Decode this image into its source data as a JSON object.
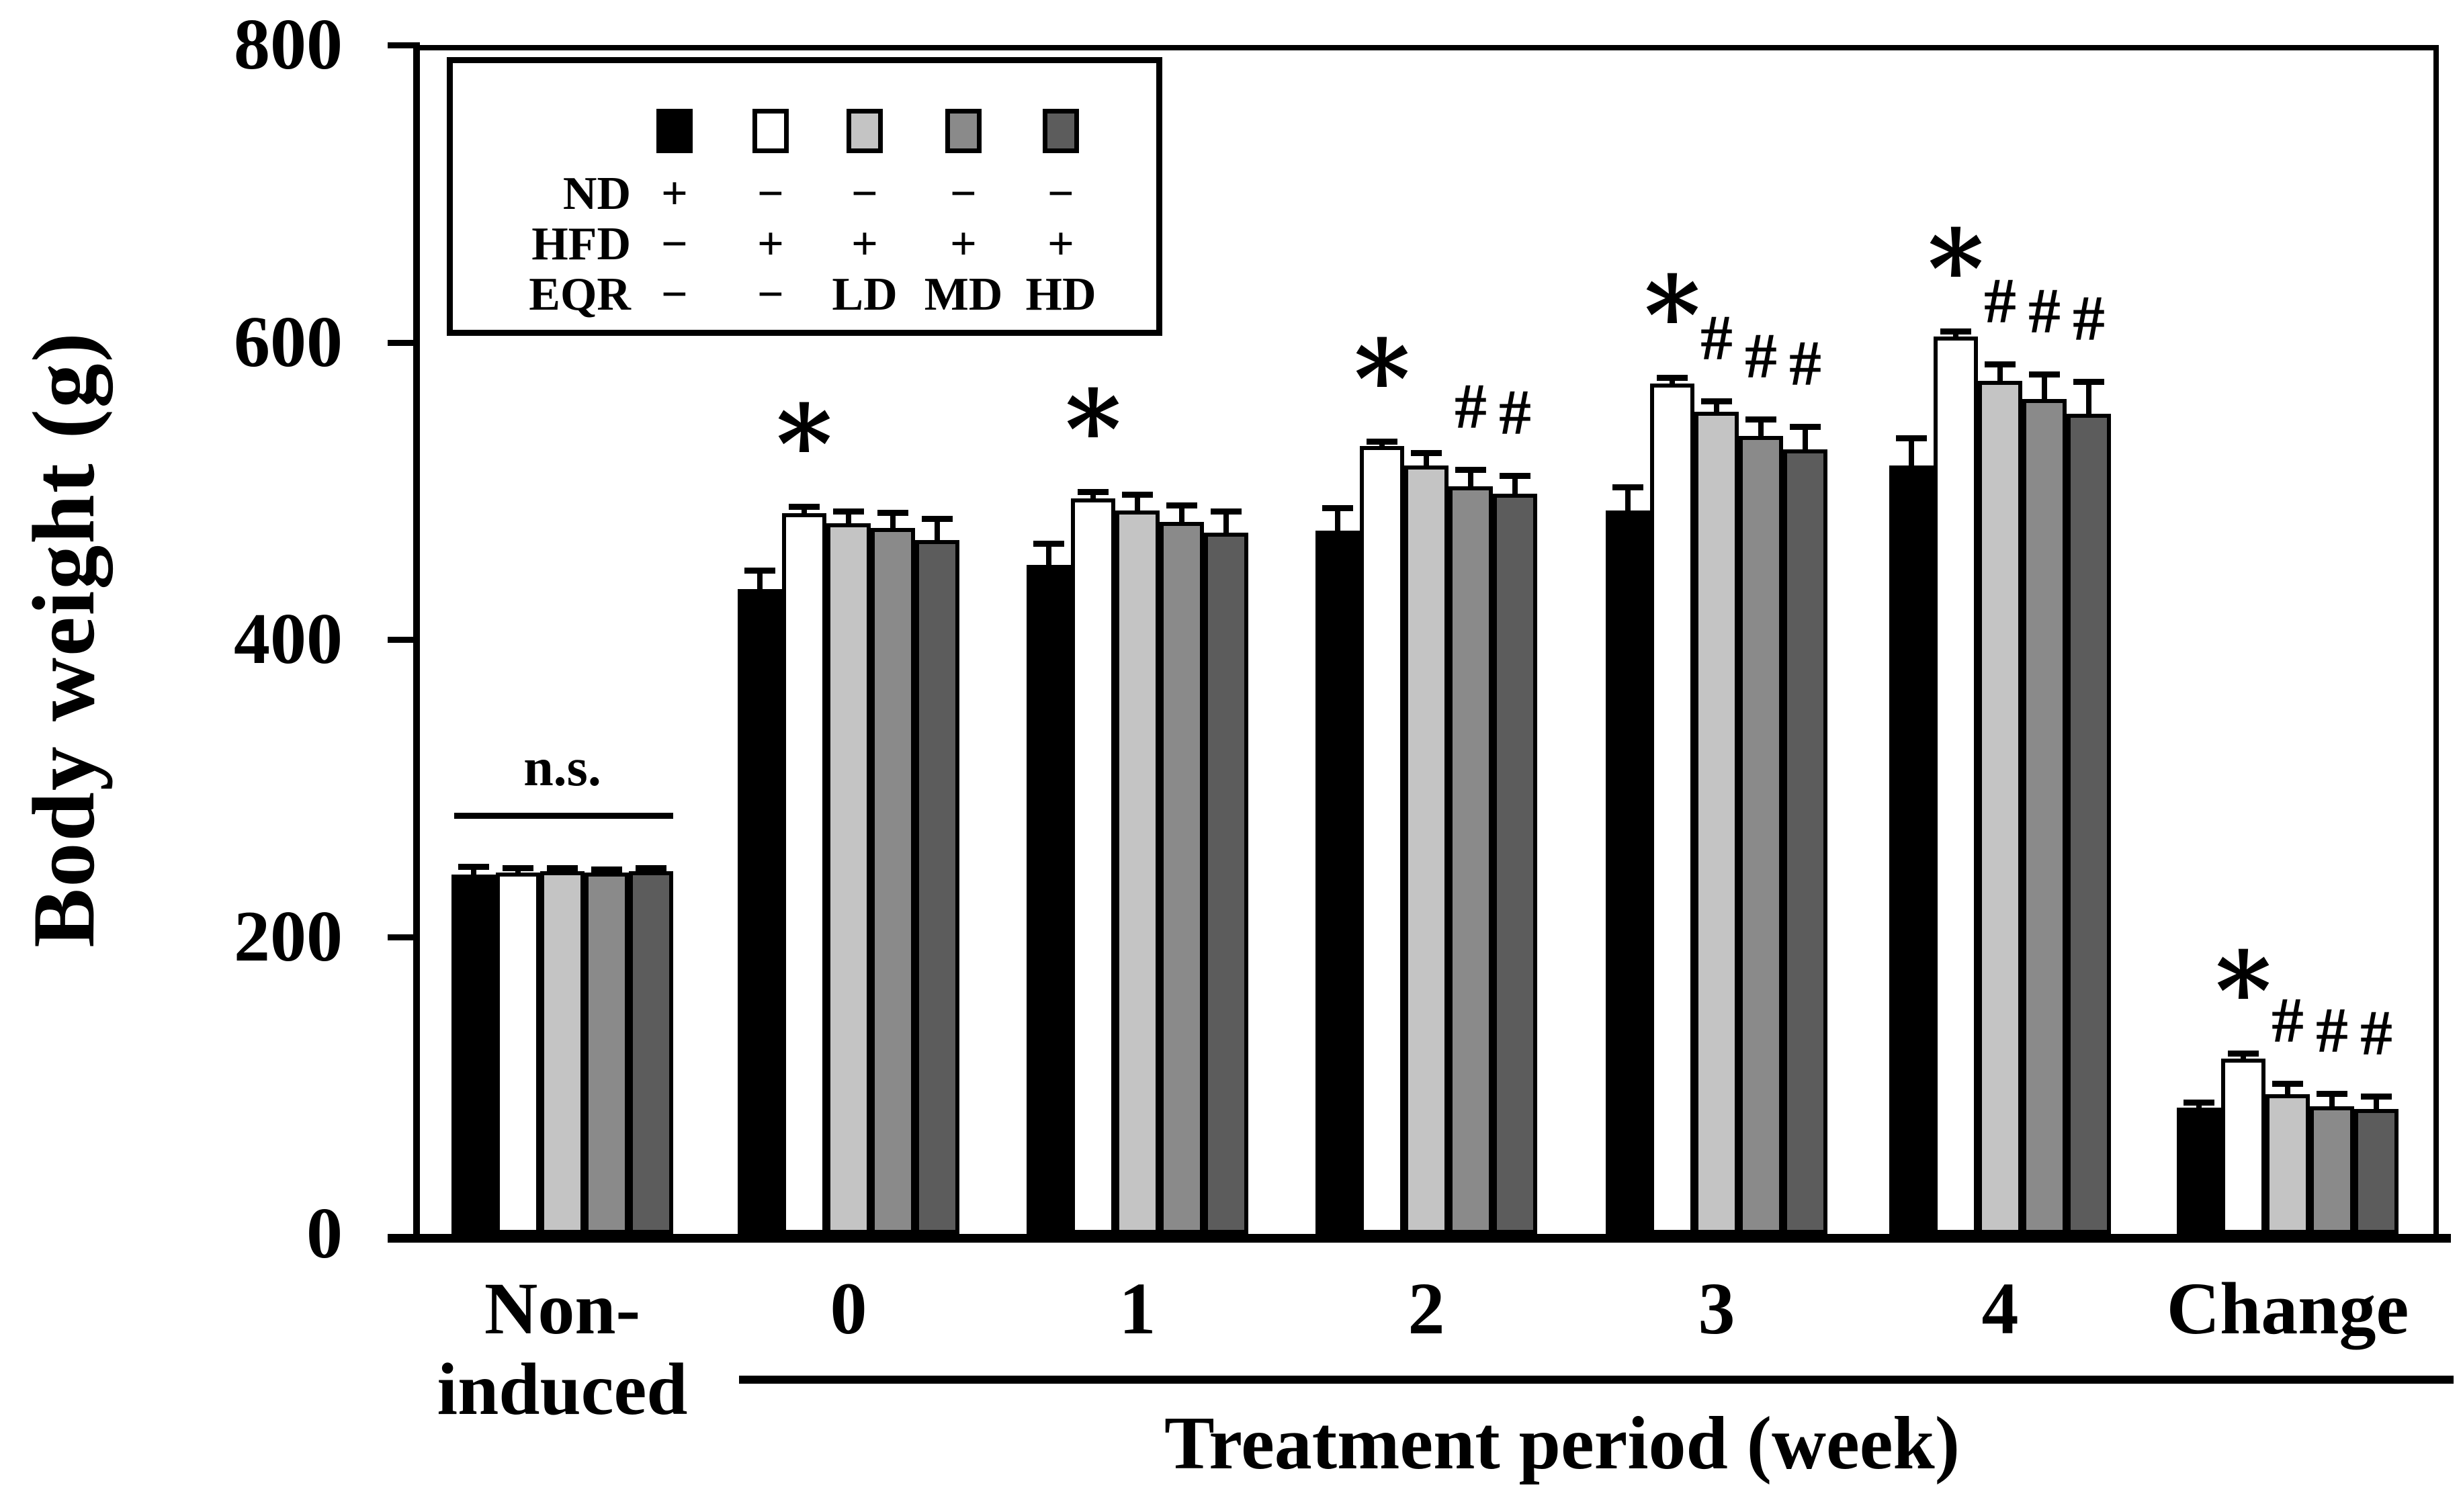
{
  "chart_data": {
    "type": "bar",
    "title": "",
    "ylabel": "Body weight (g)",
    "xlabel": "Treatment period (week)",
    "ylim": [
      0,
      800
    ],
    "yticks": [
      0,
      200,
      400,
      600,
      800
    ],
    "grid": false,
    "legend_position": "top-left-inside",
    "categories": [
      "Non-\ninduced",
      "0",
      "1",
      "2",
      "3",
      "4",
      "Change"
    ],
    "series": [
      {
        "name": "ND",
        "fill": "#000000",
        "values": [
          242,
          434,
          450,
          473,
          487,
          517,
          85
        ],
        "errors": [
          5,
          12,
          14,
          15,
          15,
          18,
          3
        ]
      },
      {
        "name": "HFD",
        "fill": "#ffffff",
        "values": [
          243,
          485,
          495,
          530,
          572,
          604,
          118
        ],
        "errors": [
          3,
          4,
          4,
          3,
          4,
          3,
          3
        ]
      },
      {
        "name": "HFD+EQR LD",
        "fill": "#c4c4c4",
        "values": [
          244,
          478,
          487,
          517,
          553,
          574,
          94
        ],
        "errors": [
          2,
          8,
          10,
          8,
          7,
          11,
          7
        ]
      },
      {
        "name": "HFD+EQR MD",
        "fill": "#8a8a8a",
        "values": [
          243,
          475,
          479,
          503,
          537,
          562,
          86
        ],
        "errors": [
          2,
          10,
          11,
          11,
          11,
          16,
          8
        ]
      },
      {
        "name": "HFD+EQR HD",
        "fill": "#5c5c5c",
        "values": [
          244,
          467,
          472,
          498,
          528,
          552,
          84
        ],
        "errors": [
          2,
          14,
          14,
          12,
          15,
          21,
          8
        ]
      }
    ],
    "sig_markers": [
      [
        "",
        "",
        "",
        "",
        ""
      ],
      [
        "",
        "*",
        "",
        "",
        ""
      ],
      [
        "",
        "*",
        "",
        "",
        ""
      ],
      [
        "",
        "*",
        "",
        "#",
        "#"
      ],
      [
        "",
        "*",
        "#",
        "#",
        "#"
      ],
      [
        "",
        "*",
        "#",
        "#",
        "#"
      ],
      [
        "",
        "*",
        "#",
        "#",
        "#"
      ]
    ],
    "ns_annotation": {
      "label": "n.s.",
      "category": "Non-\ninduced"
    },
    "x_bracket": {
      "from_category": "0",
      "to_category": "Change"
    },
    "legend": {
      "swatch_colors": [
        "#000000",
        "#ffffff",
        "#c4c4c4",
        "#8a8a8a",
        "#5c5c5c"
      ],
      "rows": [
        {
          "label": "ND",
          "cells": [
            "+",
            "−",
            "−",
            "−",
            "−"
          ]
        },
        {
          "label": "HFD",
          "cells": [
            "−",
            "+",
            "+",
            "+",
            "+"
          ]
        },
        {
          "label": "EQR",
          "cells": [
            "−",
            "−",
            "LD",
            "MD",
            "HD"
          ]
        }
      ]
    },
    "axis_color": "#000000"
  }
}
